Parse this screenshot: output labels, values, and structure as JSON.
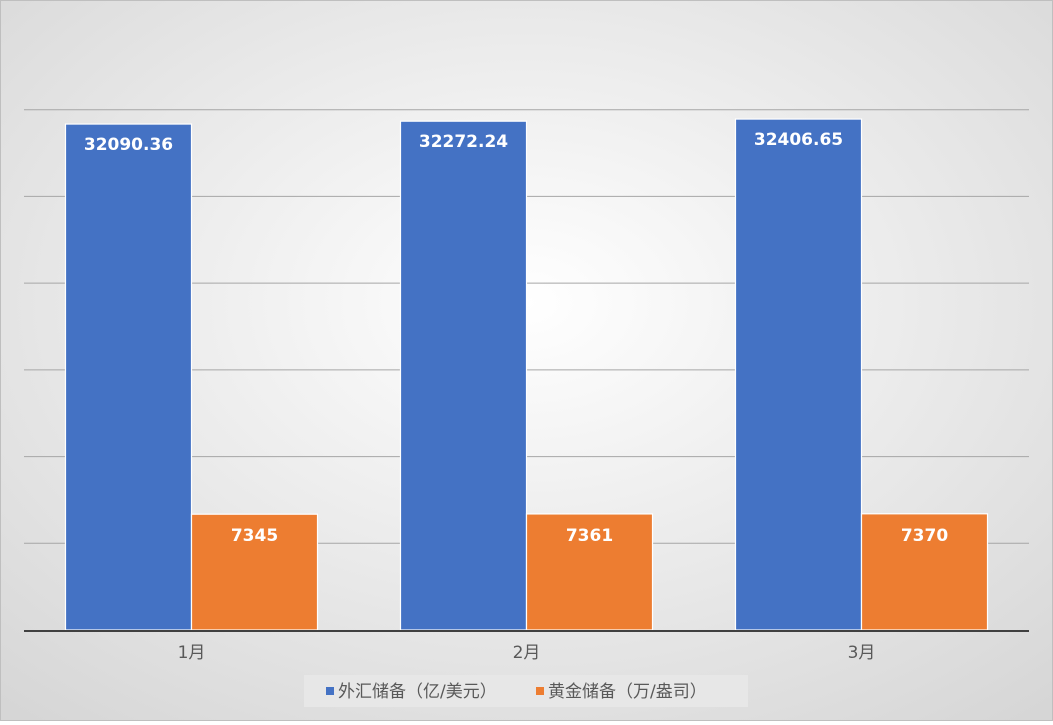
{
  "chart_data": {
    "type": "bar",
    "categories": [
      "1月",
      "2月",
      "3月"
    ],
    "series": [
      {
        "name": "外汇储备（亿/美元）",
        "values": [
          32090.36,
          32272.24,
          32406.65
        ],
        "labels": [
          "32090.36",
          "32272.24",
          "32406.65"
        ],
        "color": "#4472C4"
      },
      {
        "name": "黄金储备（万/盎司）",
        "values": [
          7345,
          7361,
          7370
        ],
        "labels": [
          "7345",
          "7361",
          "7370"
        ],
        "color": "#ED7D31"
      }
    ],
    "ylim": [
      0,
      38500
    ],
    "grid": true,
    "legend_position": "bottom",
    "data_labels": true,
    "colors": {
      "background_light": "#FFFFFF",
      "background_dark": "#D9D9D9",
      "gridline": "#A6A6A6",
      "axis": "#404040",
      "label_text": "#FFFFFF",
      "tick_text": "#595959",
      "legend_bg": "#E7E7E7"
    }
  }
}
